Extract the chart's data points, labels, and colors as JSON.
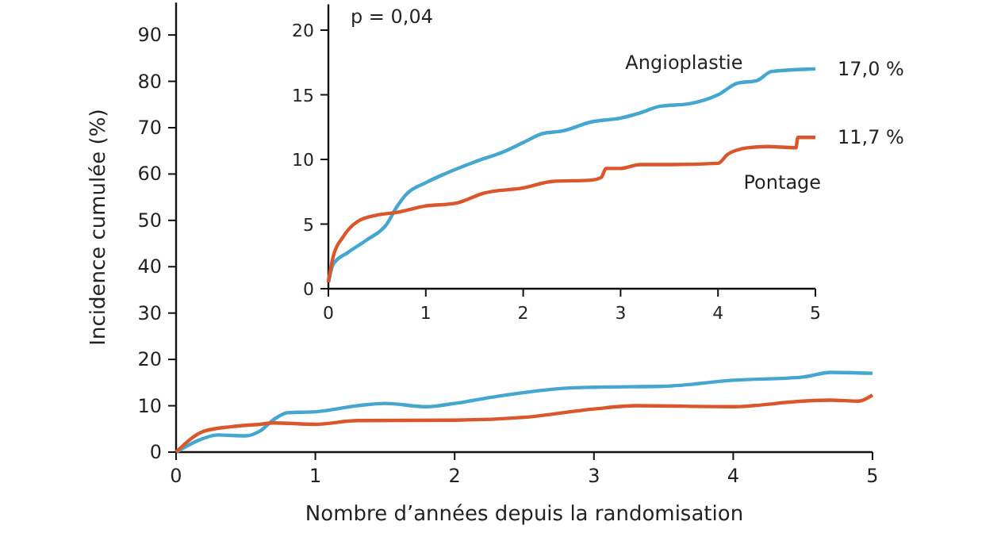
{
  "chart_data": [
    {
      "type": "line",
      "xlabel": "Nombre d’années depuis la randomisation",
      "ylabel": "Incidence cumulée (%)",
      "xlim": [
        0,
        5
      ],
      "ylim": [
        0,
        97
      ],
      "xticks": [
        0,
        1,
        2,
        3,
        4,
        5
      ],
      "yticks": [
        0,
        10,
        20,
        30,
        40,
        50,
        60,
        70,
        80,
        90
      ],
      "grid": false,
      "marker": "none",
      "line_style": "solid",
      "series": [
        {
          "color": "#45a6cf",
          "x": [
            0,
            0.2,
            0.3,
            0.5,
            0.6,
            0.7,
            0.8,
            1,
            1.3,
            1.5,
            1.8,
            2,
            2.3,
            2.8,
            3,
            3.5,
            4,
            4.5,
            4.7,
            5
          ],
          "values": [
            0,
            3,
            3.7,
            3.5,
            4.5,
            7,
            8.5,
            8.7,
            10,
            10.5,
            9.8,
            10.5,
            12,
            13.8,
            14,
            14.2,
            15.5,
            16.2,
            17.2,
            17
          ]
        },
        {
          "color": "#d9572b",
          "x": [
            0,
            0.2,
            0.4,
            0.6,
            0.7,
            1,
            1.3,
            2,
            2.5,
            3,
            3.3,
            4,
            4.5,
            4.7,
            4.9,
            5
          ],
          "values": [
            0,
            4.5,
            5.5,
            6,
            6.3,
            6,
            6.8,
            6.9,
            7.5,
            9.3,
            10,
            9.8,
            11,
            11.2,
            11,
            12.3
          ]
        }
      ]
    },
    {
      "type": "line",
      "xlim": [
        0,
        5
      ],
      "ylim": [
        0,
        22
      ],
      "xticks": [
        0,
        1,
        2,
        3,
        4,
        5
      ],
      "yticks": [
        0,
        5,
        10,
        15,
        20
      ],
      "grid": false,
      "marker": "none",
      "line_style": "solid",
      "annotations": [
        "p = 0,04",
        {
          "text": "17,0 %",
          "x": 5,
          "y": 17.0
        },
        {
          "text": "11,7 %",
          "x": 5,
          "y": 11.7
        }
      ],
      "series": [
        {
          "name": "Angioplastie",
          "color": "#45a6cf",
          "x": [
            0,
            0.05,
            0.2,
            0.4,
            0.6,
            0.7,
            0.8,
            1,
            1.2,
            1.5,
            1.8,
            2,
            2.2,
            2.4,
            2.7,
            3,
            3.2,
            3.4,
            3.7,
            4,
            4.2,
            4.4,
            4.55,
            5
          ],
          "values": [
            0.5,
            1.9,
            2.8,
            3.8,
            5,
            6.3,
            7.3,
            8.2,
            8.9,
            9.8,
            10.6,
            11.3,
            12,
            12.2,
            12.9,
            13.2,
            13.6,
            14.1,
            14.3,
            15,
            15.9,
            16.1,
            16.8,
            17.0
          ]
        },
        {
          "name": "Pontage",
          "color": "#d9572b",
          "x": [
            0,
            0.05,
            0.15,
            0.3,
            0.5,
            0.7,
            1,
            1.3,
            1.6,
            2,
            2.3,
            2.7,
            2.8,
            2.85,
            3,
            3.2,
            3.5,
            4,
            4.1,
            4.3,
            4.5,
            4.8,
            4.82,
            5
          ],
          "values": [
            0.5,
            2.5,
            4,
            5.2,
            5.7,
            5.9,
            6.4,
            6.6,
            7.4,
            7.8,
            8.3,
            8.4,
            8.6,
            9.3,
            9.3,
            9.6,
            9.6,
            9.7,
            10.4,
            10.9,
            11,
            10.9,
            11.7,
            11.7
          ]
        }
      ]
    }
  ]
}
